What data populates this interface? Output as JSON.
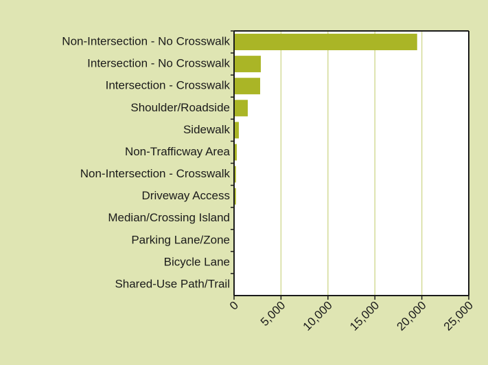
{
  "chart_data": {
    "type": "bar",
    "orientation": "horizontal",
    "categories": [
      "Non-Intersection - No Crosswalk",
      "Intersection - No Crosswalk",
      "Intersection - Crosswalk",
      "Shoulder/Roadside",
      "Sidewalk",
      "Non-Trafficway Area",
      "Non-Intersection - Crosswalk",
      "Driveway Access",
      "Median/Crossing Island",
      "Parking Lane/Zone",
      "Bicycle Lane",
      "Shared-Use Path/Trail"
    ],
    "values": [
      19500,
      2850,
      2780,
      1460,
      510,
      290,
      200,
      200,
      70,
      50,
      40,
      30
    ],
    "color": "#aab526",
    "xlim": [
      0,
      25000
    ],
    "xticks": [
      0,
      {
        "value": 5000,
        "label": "5,000"
      },
      {
        "value": 10000,
        "label": "10,000"
      },
      {
        "value": 15000,
        "label": "15,000"
      },
      {
        "value": 20000,
        "label": "20,000"
      },
      {
        "value": 25000,
        "label": "25,000"
      }
    ],
    "grid": true
  }
}
